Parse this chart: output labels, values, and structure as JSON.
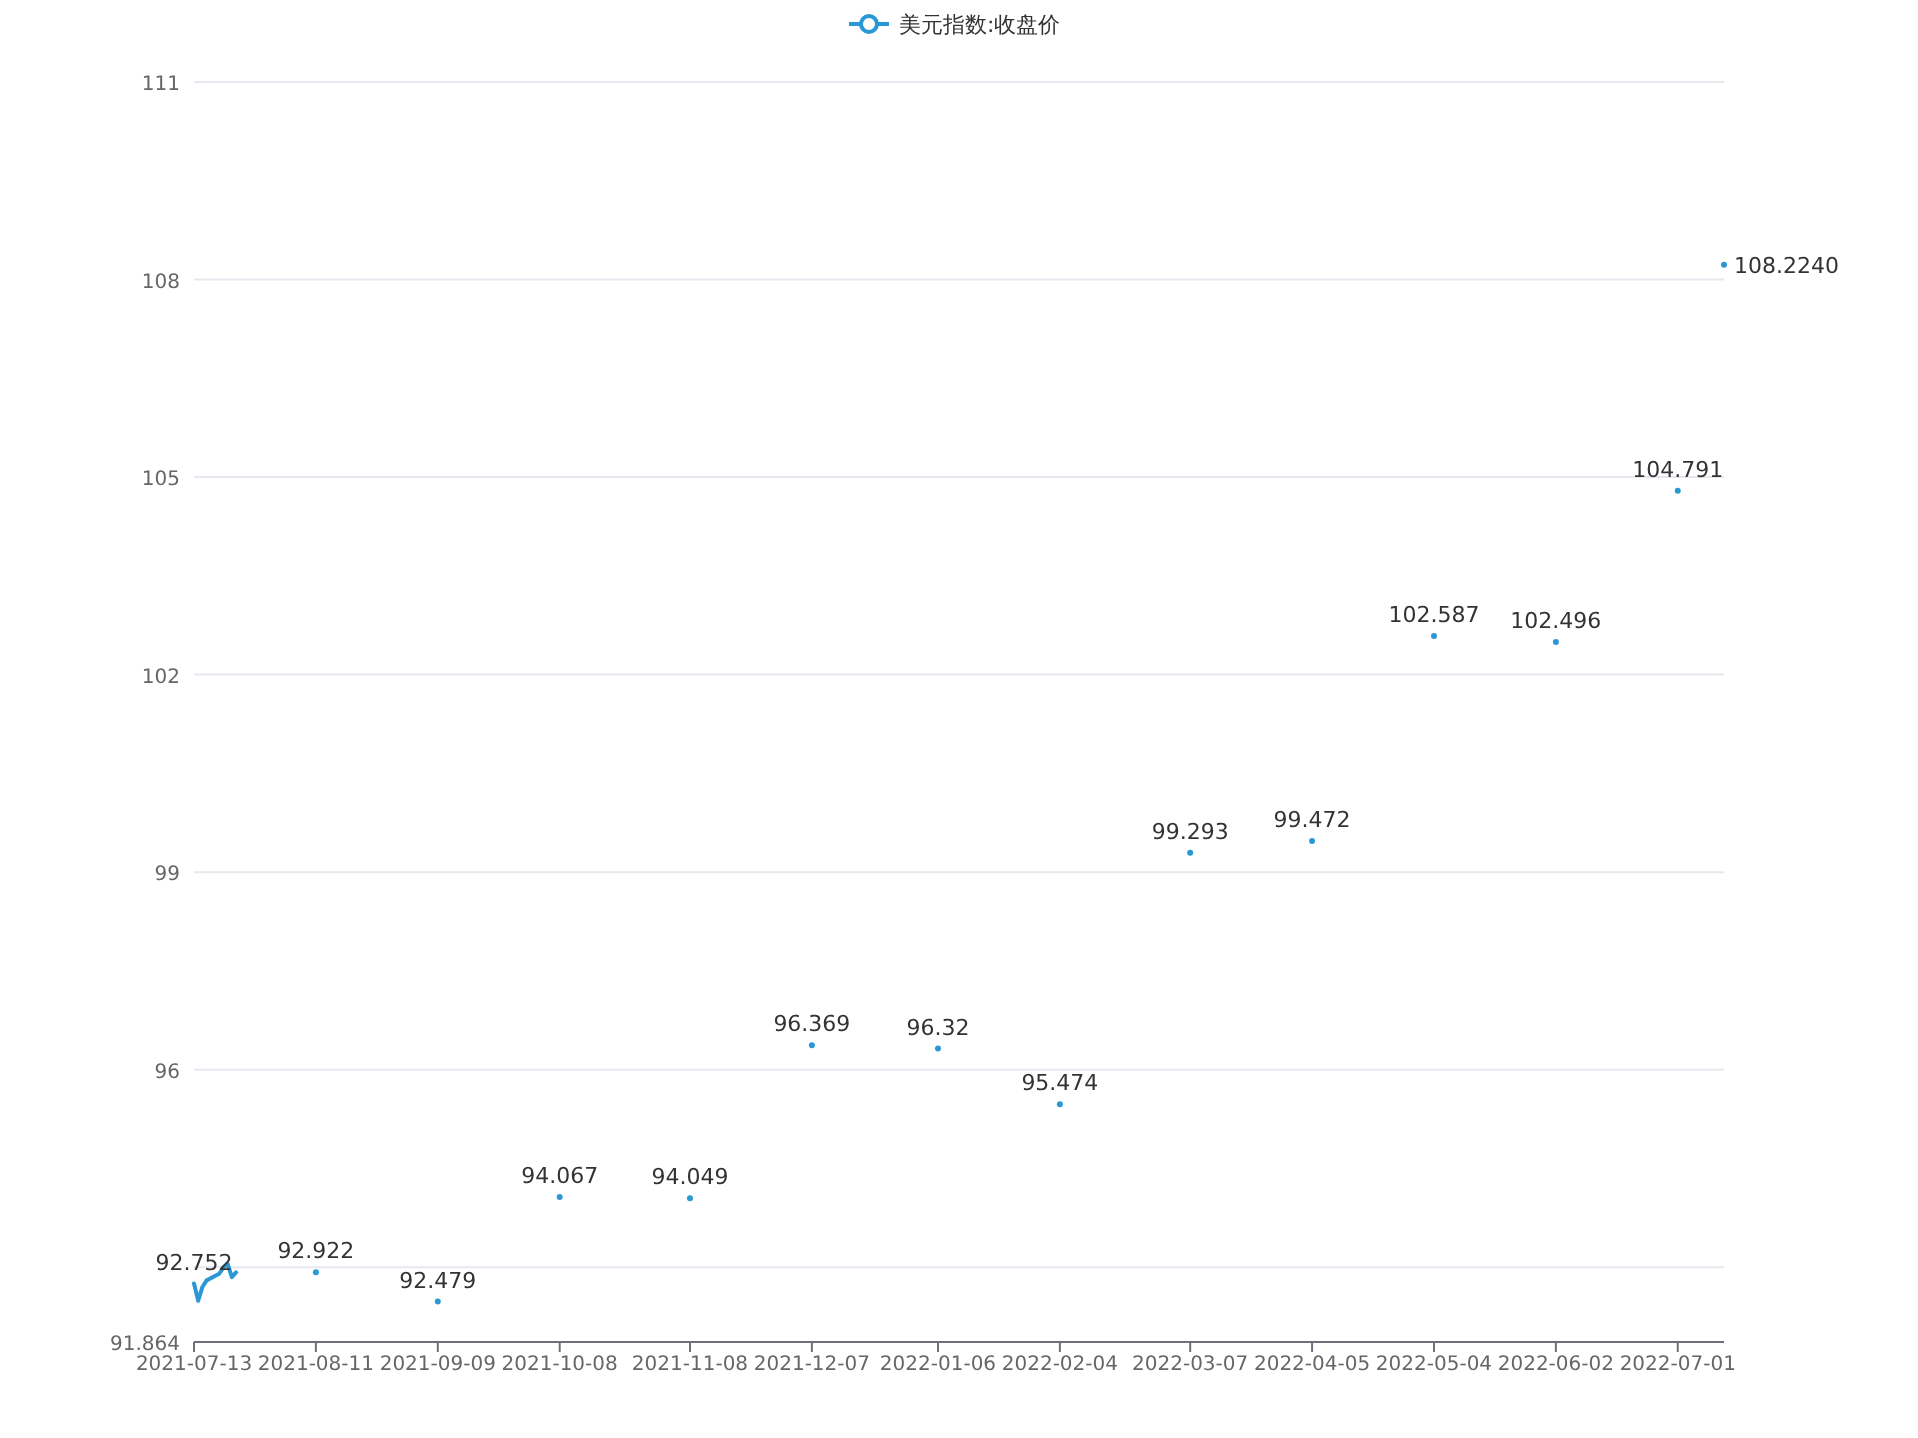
{
  "chart_data": {
    "type": "line",
    "legend": "top",
    "series": [
      {
        "name": "美元指数:收盘价",
        "color": "#2b98d6",
        "x": [
          "2021-07-13",
          "2021-07-14",
          "2021-07-15",
          "2021-07-16",
          "2021-07-19",
          "2021-07-20",
          "2021-07-21",
          "2021-07-22",
          "2021-07-23"
        ],
        "values": [
          92.752,
          92.49,
          92.7,
          92.8,
          92.9,
          93.0,
          93.05,
          92.85,
          92.92
        ],
        "value_labels": [
          "92.752",
          null,
          null,
          null,
          null,
          null,
          null,
          null,
          null
        ]
      },
      {
        "type": "scatter",
        "color": "#2b98d6",
        "x": [
          "2021-08-11",
          "2021-09-09",
          "2021-10-08",
          "2021-11-08",
          "2021-12-07",
          "2022-01-06",
          "2022-02-04",
          "2022-03-07",
          "2022-04-05",
          "2022-05-04",
          "2022-06-02",
          "2022-07-01",
          "2022-07-12"
        ],
        "values": [
          92.922,
          92.479,
          94.067,
          94.049,
          96.369,
          96.32,
          95.474,
          99.293,
          99.472,
          102.587,
          102.496,
          104.791,
          108.224
        ],
        "value_labels": [
          "92.922",
          "92.479",
          "94.067",
          "94.049",
          "96.369",
          "96.32",
          "95.474",
          "99.293",
          "99.472",
          "102.587",
          "102.496",
          "104.791",
          "108.2240"
        ]
      }
    ],
    "xlim": [
      "2021-07-13",
      "2022-07-12"
    ],
    "xticks": [
      "2021-07-13",
      "2021-08-11",
      "2021-09-09",
      "2021-10-08",
      "2021-11-08",
      "2021-12-07",
      "2022-01-06",
      "2022-02-04",
      "2022-03-07",
      "2022-04-05",
      "2022-05-04",
      "2022-06-02",
      "2022-07-01"
    ],
    "ylim": [
      91.864,
      111
    ],
    "yticks": [
      91.864,
      {
        "value": 93,
        "label": null
      },
      96,
      99,
      102,
      105,
      108,
      111
    ],
    "grid": "y"
  }
}
